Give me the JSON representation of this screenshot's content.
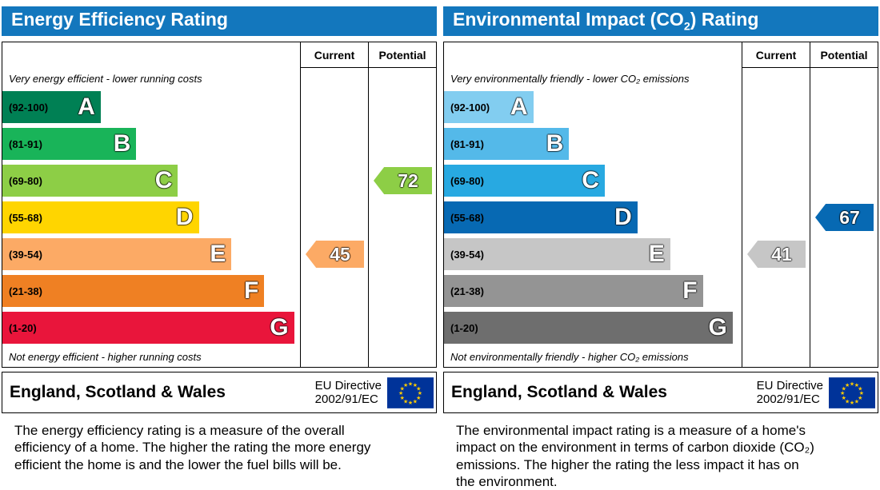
{
  "theme": {
    "header_color": "#1377bd",
    "border_color": "#000000"
  },
  "eu_flag": {
    "background_color": "#003399",
    "star_color": "#ffcc00",
    "star_glyph": "★"
  },
  "chart_data": [
    {
      "type": "bar",
      "title_pre": "Energy Efficiency Rating",
      "title_sub": "",
      "title_post": "",
      "column_headers": [
        "Current",
        "Potential"
      ],
      "top_note": "Very energy efficient - lower running costs",
      "bottom_note": "Not energy efficient - higher running costs",
      "bands": [
        {
          "range": "(92-100)",
          "letter": "A",
          "color": "#008054",
          "width_pct": 33
        },
        {
          "range": "(81-91)",
          "letter": "B",
          "color": "#19b459",
          "width_pct": 45
        },
        {
          "range": "(69-80)",
          "letter": "C",
          "color": "#8dce46",
          "width_pct": 59
        },
        {
          "range": "(55-68)",
          "letter": "D",
          "color": "#ffd500",
          "width_pct": 66
        },
        {
          "range": "(39-54)",
          "letter": "E",
          "color": "#fcaa65",
          "width_pct": 77
        },
        {
          "range": "(21-38)",
          "letter": "F",
          "color": "#ef8023",
          "width_pct": 88
        },
        {
          "range": "(1-20)",
          "letter": "G",
          "color": "#e9153b",
          "width_pct": 98
        }
      ],
      "current": {
        "value": 45,
        "band_index": 4,
        "color": "#fcaa65"
      },
      "potential": {
        "value": 72,
        "band_index": 2,
        "color": "#8dce46"
      },
      "footer_region": "England, Scotland & Wales",
      "footer_directive_line1": "EU Directive",
      "footer_directive_line2": "2002/91/EC",
      "description": "The energy efficiency rating is a measure of the overall efficiency of a home. The higher the rating the more energy efficient the home is and the lower the fuel bills will be."
    },
    {
      "type": "bar",
      "title_pre": "Environmental Impact (CO",
      "title_sub": "2",
      "title_post": ") Rating",
      "column_headers": [
        "Current",
        "Potential"
      ],
      "top_note": "Very environmentally friendly - lower CO₂ emissions",
      "bottom_note": "Not environmentally friendly - higher CO₂ emissions",
      "bands": [
        {
          "range": "(92-100)",
          "letter": "A",
          "color": "#82cdf0",
          "width_pct": 30
        },
        {
          "range": "(81-91)",
          "letter": "B",
          "color": "#54b9e9",
          "width_pct": 42
        },
        {
          "range": "(69-80)",
          "letter": "C",
          "color": "#28a9e1",
          "width_pct": 54
        },
        {
          "range": "(55-68)",
          "letter": "D",
          "color": "#0769b3",
          "width_pct": 65
        },
        {
          "range": "(39-54)",
          "letter": "E",
          "color": "#c6c6c6",
          "width_pct": 76
        },
        {
          "range": "(21-38)",
          "letter": "F",
          "color": "#949494",
          "width_pct": 87
        },
        {
          "range": "(1-20)",
          "letter": "G",
          "color": "#6e6e6e",
          "width_pct": 97
        }
      ],
      "current": {
        "value": 41,
        "band_index": 4,
        "color": "#c6c6c6"
      },
      "potential": {
        "value": 67,
        "band_index": 3,
        "color": "#0769b3"
      },
      "footer_region": "England, Scotland & Wales",
      "footer_directive_line1": "EU Directive",
      "footer_directive_line2": "2002/91/EC",
      "description": "The environmental impact rating is a measure of a home's impact on the environment in terms of carbon dioxide (CO₂) emissions. The higher the rating the less impact it has on the environment."
    }
  ]
}
